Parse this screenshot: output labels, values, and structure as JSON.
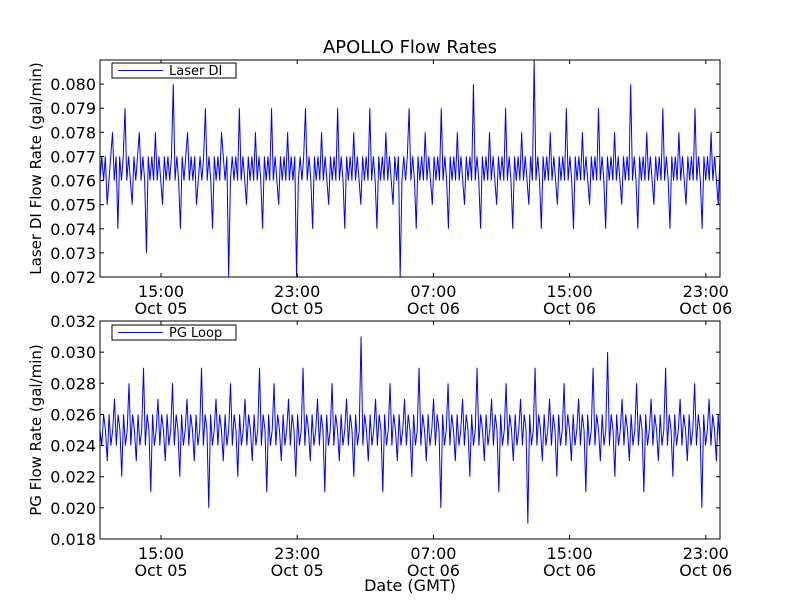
{
  "chart_data": {
    "type": "line",
    "title": "APOLLO Flow Rates",
    "xlabel": "Date (GMT)",
    "x_ticks": [
      {
        "time": "15:00",
        "date": "Oct 05"
      },
      {
        "time": "23:00",
        "date": "Oct 05"
      },
      {
        "time": "07:00",
        "date": "Oct 06"
      },
      {
        "time": "15:00",
        "date": "Oct 06"
      },
      {
        "time": "23:00",
        "date": "Oct 06"
      }
    ],
    "xlim": [
      "Oct 05 11:25",
      "Oct 06 23:50"
    ],
    "line_color": "#0000ff",
    "grid": false,
    "legend_location": "top-left",
    "panels": [
      {
        "name": "laser",
        "series_name": "Laser DI",
        "ylabel": "Laser DI Flow Rate (gal/min)",
        "ylim": [
          0.072,
          0.081
        ],
        "y_ticks": [
          "0.072",
          "0.073",
          "0.074",
          "0.075",
          "0.076",
          "0.077",
          "0.078",
          "0.079",
          "0.080"
        ],
        "y_tick_values": [
          0.072,
          0.073,
          0.074,
          0.075,
          0.076,
          0.077,
          0.078,
          0.079,
          0.08
        ],
        "typical_range": [
          0.076,
          0.077
        ],
        "spike_extremes": [
          0.072,
          0.081
        ],
        "values": [
          0.076,
          0.077,
          0.076,
          0.077,
          0.075,
          0.076,
          0.077,
          0.078,
          0.076,
          0.077,
          0.074,
          0.077,
          0.076,
          0.077,
          0.079,
          0.076,
          0.077,
          0.076,
          0.075,
          0.077,
          0.076,
          0.077,
          0.078,
          0.076,
          0.077,
          0.076,
          0.073,
          0.077,
          0.076,
          0.077,
          0.076,
          0.078,
          0.076,
          0.077,
          0.076,
          0.075,
          0.077,
          0.076,
          0.077,
          0.076,
          0.077,
          0.08,
          0.076,
          0.077,
          0.076,
          0.074,
          0.077,
          0.076,
          0.077,
          0.078,
          0.076,
          0.077,
          0.076,
          0.077,
          0.075,
          0.076,
          0.077,
          0.076,
          0.077,
          0.079,
          0.076,
          0.077,
          0.076,
          0.074,
          0.077,
          0.076,
          0.077,
          0.076,
          0.078,
          0.077,
          0.076,
          0.077,
          0.072,
          0.076,
          0.077,
          0.076,
          0.077,
          0.076,
          0.079,
          0.076,
          0.077,
          0.076,
          0.075,
          0.077,
          0.076,
          0.077,
          0.076,
          0.078,
          0.076,
          0.077,
          0.076,
          0.074,
          0.077,
          0.076,
          0.077,
          0.076,
          0.079,
          0.076,
          0.077,
          0.076,
          0.075,
          0.077,
          0.076,
          0.077,
          0.076,
          0.078,
          0.076,
          0.077,
          0.076,
          0.077,
          0.072,
          0.076,
          0.077,
          0.076,
          0.077,
          0.079,
          0.076,
          0.077,
          0.076,
          0.074,
          0.077,
          0.076,
          0.077,
          0.076,
          0.078,
          0.076,
          0.077,
          0.076,
          0.075,
          0.077,
          0.076,
          0.077,
          0.076,
          0.079,
          0.076,
          0.077,
          0.076,
          0.074,
          0.077,
          0.076,
          0.077,
          0.076,
          0.078,
          0.076,
          0.077,
          0.076,
          0.075,
          0.077,
          0.076,
          0.077,
          0.076,
          0.079,
          0.076,
          0.077,
          0.076,
          0.074,
          0.077,
          0.076,
          0.077,
          0.076,
          0.078,
          0.076,
          0.077,
          0.076,
          0.075,
          0.077,
          0.076,
          0.077,
          0.072,
          0.076,
          0.077,
          0.076,
          0.077,
          0.079,
          0.076,
          0.077,
          0.076,
          0.074,
          0.077,
          0.076,
          0.077,
          0.076,
          0.078,
          0.076,
          0.077,
          0.076,
          0.075,
          0.077,
          0.076,
          0.077,
          0.076,
          0.079,
          0.076,
          0.077,
          0.076,
          0.074,
          0.077,
          0.076,
          0.077,
          0.076,
          0.078,
          0.076,
          0.077,
          0.076,
          0.075,
          0.077,
          0.076,
          0.077,
          0.076,
          0.08,
          0.076,
          0.077,
          0.076,
          0.074,
          0.077,
          0.076,
          0.077,
          0.076,
          0.078,
          0.076,
          0.077,
          0.076,
          0.075,
          0.077,
          0.076,
          0.077,
          0.076,
          0.079,
          0.076,
          0.077,
          0.076,
          0.074,
          0.077,
          0.076,
          0.077,
          0.076,
          0.078,
          0.076,
          0.077,
          0.076,
          0.075,
          0.077,
          0.076,
          0.081,
          0.076,
          0.077,
          0.076,
          0.074,
          0.077,
          0.076,
          0.077,
          0.076,
          0.078,
          0.076,
          0.077,
          0.076,
          0.075,
          0.077,
          0.076,
          0.077,
          0.076,
          0.079,
          0.076,
          0.077,
          0.076,
          0.074,
          0.077,
          0.076,
          0.077,
          0.076,
          0.078,
          0.076,
          0.077,
          0.076,
          0.075,
          0.077,
          0.076,
          0.077,
          0.076,
          0.079,
          0.076,
          0.077,
          0.076,
          0.074,
          0.077,
          0.076,
          0.077,
          0.076,
          0.078,
          0.076,
          0.077,
          0.076,
          0.075,
          0.077,
          0.076,
          0.077,
          0.076,
          0.08,
          0.076,
          0.077,
          0.076,
          0.074,
          0.077,
          0.076,
          0.077,
          0.076,
          0.078,
          0.076,
          0.077,
          0.076,
          0.075,
          0.077,
          0.076,
          0.077,
          0.076,
          0.079,
          0.076,
          0.077,
          0.076,
          0.074,
          0.077,
          0.076,
          0.077,
          0.076,
          0.078,
          0.076,
          0.077,
          0.076,
          0.075,
          0.077,
          0.076,
          0.077,
          0.076,
          0.079,
          0.076,
          0.077,
          0.076,
          0.074,
          0.077,
          0.076,
          0.077,
          0.076,
          0.078,
          0.076,
          0.077,
          0.076,
          0.075,
          0.077
        ]
      },
      {
        "name": "pg",
        "series_name": "PG Loop",
        "ylabel": "PG Flow Rate (gal/min)",
        "ylim": [
          0.018,
          0.032
        ],
        "y_ticks": [
          "0.018",
          "0.020",
          "0.022",
          "0.024",
          "0.026",
          "0.028",
          "0.030",
          "0.032"
        ],
        "y_tick_values": [
          0.018,
          0.02,
          0.022,
          0.024,
          0.026,
          0.028,
          0.03,
          0.032
        ],
        "typical_range": [
          0.024,
          0.026
        ],
        "spike_extremes": [
          0.019,
          0.031
        ],
        "values": [
          0.025,
          0.024,
          0.026,
          0.025,
          0.023,
          0.026,
          0.024,
          0.025,
          0.027,
          0.024,
          0.026,
          0.025,
          0.022,
          0.026,
          0.024,
          0.025,
          0.028,
          0.024,
          0.026,
          0.025,
          0.023,
          0.026,
          0.024,
          0.025,
          0.029,
          0.024,
          0.026,
          0.025,
          0.021,
          0.026,
          0.024,
          0.025,
          0.027,
          0.024,
          0.026,
          0.025,
          0.023,
          0.026,
          0.024,
          0.025,
          0.028,
          0.024,
          0.026,
          0.025,
          0.022,
          0.026,
          0.024,
          0.025,
          0.027,
          0.024,
          0.026,
          0.025,
          0.023,
          0.026,
          0.024,
          0.025,
          0.029,
          0.024,
          0.026,
          0.025,
          0.02,
          0.026,
          0.024,
          0.025,
          0.027,
          0.024,
          0.026,
          0.025,
          0.023,
          0.026,
          0.024,
          0.025,
          0.028,
          0.024,
          0.026,
          0.025,
          0.022,
          0.026,
          0.024,
          0.025,
          0.027,
          0.024,
          0.026,
          0.025,
          0.023,
          0.026,
          0.024,
          0.025,
          0.029,
          0.024,
          0.026,
          0.025,
          0.021,
          0.026,
          0.024,
          0.025,
          0.028,
          0.024,
          0.026,
          0.025,
          0.023,
          0.026,
          0.024,
          0.025,
          0.027,
          0.024,
          0.026,
          0.025,
          0.022,
          0.026,
          0.024,
          0.025,
          0.029,
          0.024,
          0.026,
          0.025,
          0.023,
          0.026,
          0.024,
          0.025,
          0.027,
          0.024,
          0.026,
          0.025,
          0.021,
          0.026,
          0.024,
          0.025,
          0.028,
          0.024,
          0.026,
          0.025,
          0.023,
          0.026,
          0.024,
          0.025,
          0.027,
          0.024,
          0.026,
          0.025,
          0.022,
          0.026,
          0.024,
          0.025,
          0.031,
          0.024,
          0.026,
          0.025,
          0.023,
          0.026,
          0.024,
          0.025,
          0.027,
          0.024,
          0.026,
          0.025,
          0.021,
          0.026,
          0.024,
          0.025,
          0.028,
          0.024,
          0.026,
          0.025,
          0.023,
          0.026,
          0.024,
          0.025,
          0.027,
          0.024,
          0.026,
          0.025,
          0.022,
          0.026,
          0.024,
          0.025,
          0.029,
          0.024,
          0.026,
          0.025,
          0.023,
          0.026,
          0.024,
          0.025,
          0.027,
          0.024,
          0.026,
          0.025,
          0.02,
          0.026,
          0.024,
          0.025,
          0.028,
          0.024,
          0.026,
          0.025,
          0.023,
          0.026,
          0.024,
          0.025,
          0.027,
          0.024,
          0.026,
          0.025,
          0.022,
          0.026,
          0.024,
          0.025,
          0.029,
          0.024,
          0.026,
          0.025,
          0.023,
          0.026,
          0.024,
          0.025,
          0.027,
          0.024,
          0.026,
          0.025,
          0.021,
          0.026,
          0.024,
          0.025,
          0.028,
          0.024,
          0.026,
          0.025,
          0.023,
          0.026,
          0.024,
          0.025,
          0.027,
          0.024,
          0.026,
          0.025,
          0.019,
          0.026,
          0.024,
          0.025,
          0.029,
          0.024,
          0.026,
          0.025,
          0.023,
          0.026,
          0.024,
          0.025,
          0.027,
          0.024,
          0.026,
          0.025,
          0.022,
          0.026,
          0.024,
          0.025,
          0.028,
          0.024,
          0.026,
          0.025,
          0.023,
          0.026,
          0.024,
          0.025,
          0.027,
          0.024,
          0.026,
          0.025,
          0.021,
          0.026,
          0.024,
          0.025,
          0.029,
          0.024,
          0.026,
          0.025,
          0.023,
          0.026,
          0.024,
          0.025,
          0.03,
          0.024,
          0.026,
          0.025,
          0.022,
          0.026,
          0.024,
          0.025,
          0.027,
          0.024,
          0.026,
          0.025,
          0.023,
          0.026,
          0.024,
          0.025,
          0.028,
          0.024,
          0.026,
          0.025,
          0.021,
          0.026,
          0.024,
          0.025,
          0.027,
          0.024,
          0.026,
          0.025,
          0.023,
          0.026,
          0.024,
          0.025,
          0.029,
          0.024,
          0.026,
          0.025,
          0.022,
          0.026,
          0.024,
          0.025,
          0.027,
          0.024,
          0.026,
          0.025,
          0.023,
          0.026,
          0.024,
          0.025,
          0.028,
          0.024,
          0.026,
          0.025,
          0.02,
          0.026,
          0.024,
          0.025,
          0.027,
          0.024,
          0.026,
          0.025,
          0.023,
          0.026,
          0.024
        ]
      }
    ]
  }
}
